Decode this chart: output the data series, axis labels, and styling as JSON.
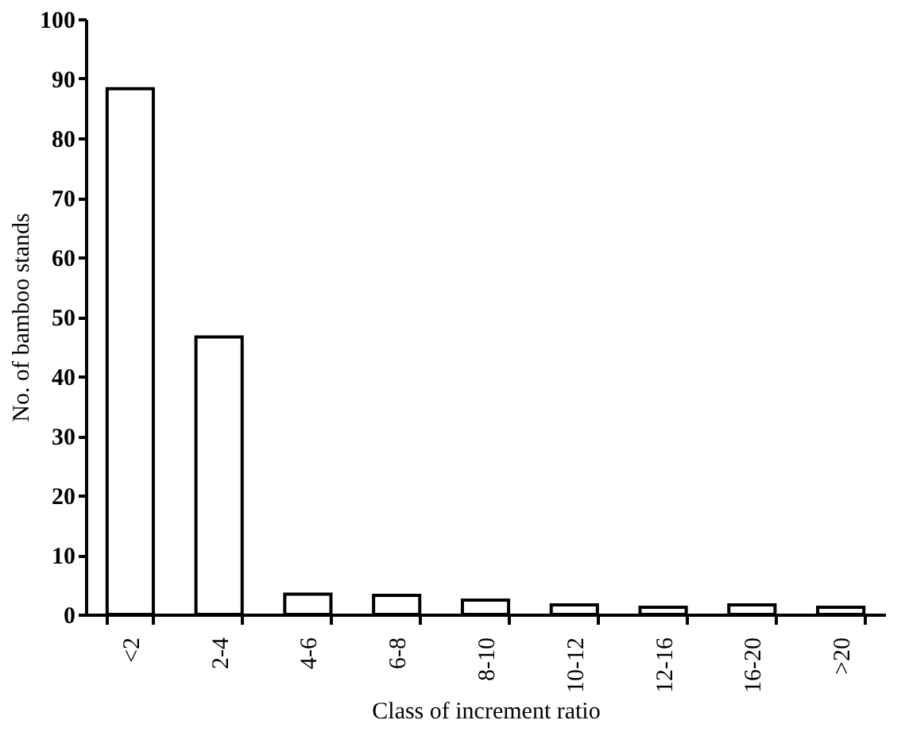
{
  "chart_data": {
    "type": "bar",
    "xlabel": "Class of increment ratio",
    "ylabel": "No. of bamboo stands",
    "categories": [
      "<2",
      "2-4",
      "4-6",
      "6-8",
      "8-10",
      "10-12",
      "12-16",
      "16-20",
      ">20"
    ],
    "values": [
      88.3,
      46.6,
      3.4,
      3.2,
      2.4,
      1.6,
      1.2,
      1.6,
      1.2
    ],
    "color": "#ffffff",
    "ylim": [
      0,
      100
    ],
    "yticks": [
      0,
      10,
      20,
      30,
      40,
      50,
      60,
      70,
      80,
      90,
      100
    ],
    "grid": false
  }
}
